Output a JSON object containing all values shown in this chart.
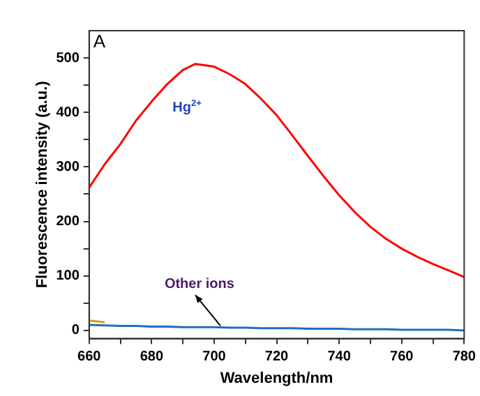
{
  "chart_data": {
    "type": "line",
    "xlabel": "Wavelength/nm",
    "ylabel": "Fluorescence intensity (a.u.)",
    "x": [
      660,
      665,
      670,
      675,
      680,
      685,
      690,
      694,
      700,
      705,
      710,
      715,
      720,
      725,
      730,
      735,
      740,
      745,
      750,
      755,
      760,
      765,
      770,
      775,
      780
    ],
    "series": [
      {
        "color": "#ff0000",
        "values": [
          262,
          305,
          342,
          385,
          420,
          452,
          478,
          489,
          484,
          470,
          452,
          425,
          395,
          358,
          320,
          283,
          248,
          217,
          190,
          168,
          150,
          135,
          122,
          110,
          98
        ]
      },
      {
        "color": "#d4a017",
        "values": [
          18,
          15,
          null,
          null,
          null,
          null,
          null,
          null,
          null,
          null,
          null,
          null,
          null,
          null,
          null,
          null,
          null,
          null,
          null,
          null,
          null,
          null,
          null,
          null,
          null
        ]
      },
      {
        "color": "#1f6fbf",
        "values": [
          10,
          9,
          8,
          8,
          7,
          7,
          6,
          6,
          6,
          5,
          5,
          4,
          4,
          4,
          3,
          3,
          3,
          2,
          2,
          2,
          1,
          1,
          1,
          1,
          0
        ]
      }
    ],
    "xlim": [
      660,
      780
    ],
    "xticks": [
      660,
      {
        "value": 670,
        "label": null
      },
      680,
      {
        "value": 690,
        "label": null
      },
      700,
      {
        "value": 710,
        "label": null
      },
      720,
      {
        "value": 730,
        "label": null
      },
      740,
      {
        "value": 750,
        "label": null
      },
      760,
      {
        "value": 770,
        "label": null
      },
      780
    ],
    "ylim": [
      -15,
      550
    ],
    "yticks": [
      0,
      {
        "value": 50,
        "label": null
      },
      100,
      {
        "value": 150,
        "label": null
      },
      200,
      {
        "value": 250,
        "label": null
      },
      300,
      {
        "value": 350,
        "label": null
      },
      400,
      {
        "value": 450,
        "label": null
      },
      500
    ],
    "grid": false,
    "legend": false,
    "marker": "none",
    "line_style": "solid",
    "annotations": [
      "A",
      "Hg$^{2+}$",
      {
        "text": "Other ions",
        "x": 702,
        "y": 6
      }
    ]
  }
}
